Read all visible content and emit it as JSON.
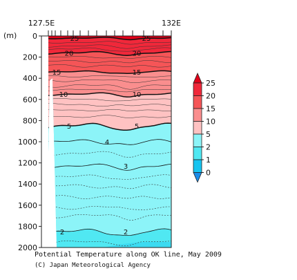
{
  "chart_data": {
    "type": "heatmap",
    "x_tick_labels": [
      "127.5E",
      "132E"
    ],
    "y_unit_label": "(m)",
    "y_ticks": [
      0,
      200,
      400,
      600,
      800,
      1000,
      1200,
      1400,
      1600,
      1800,
      2000
    ],
    "y_range": [
      0,
      2000
    ],
    "x_range": [
      127.5,
      132
    ],
    "levels": [
      0,
      1,
      2,
      5,
      10,
      15,
      20,
      25
    ],
    "colorbar_labels": [
      "25",
      "20",
      "15",
      "10",
      "5",
      "2",
      "1",
      "0"
    ],
    "band_colors": {
      "gt25": "#e10019",
      "20_25": "#f0283a",
      "15_20": "#f55557",
      "10_15": "#fa8e8e",
      "5_10": "#ffc2c2",
      "2_5": "#8cf4f8",
      "1_2": "#50e8f2",
      "0_1": "#16c4f0",
      "lt0": "#1a8ce8"
    },
    "isotherm_depths_m": {
      "25": 20,
      "20": 160,
      "15": 340,
      "10": 550,
      "5": 850,
      "4": 1000,
      "3": 1230,
      "2": 1850
    },
    "contour_labels": [
      "25",
      "20",
      "15",
      "10",
      "5",
      "4",
      "3",
      "2"
    ],
    "caption": "Potential Temperature along OK line, May 2009",
    "credit": "(C) Japan Meteorological Agency"
  }
}
